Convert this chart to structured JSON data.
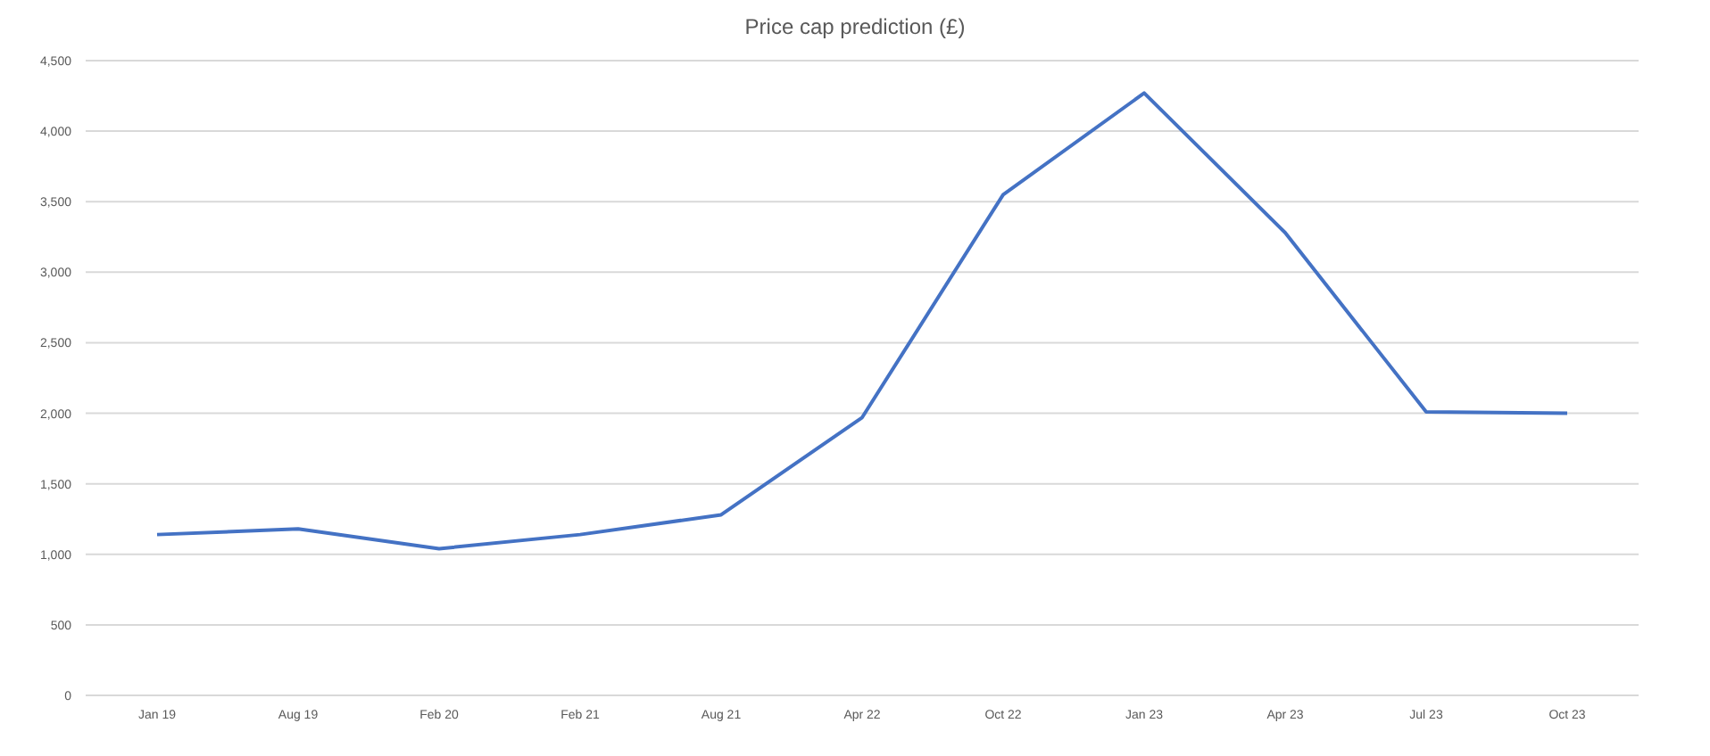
{
  "chart_data": {
    "type": "line",
    "title": "Price cap prediction (£)",
    "categories": [
      "Jan 19",
      "Aug 19",
      "Feb 20",
      "Feb 21",
      "Aug 21",
      "Apr 22",
      "Oct 22",
      "Jan 23",
      "Apr 23",
      "Jul 23",
      "Oct 23"
    ],
    "series": [
      {
        "color": "#4472c4",
        "values": [
          1140,
          1180,
          1040,
          1140,
          1280,
          1970,
          3550,
          4270,
          3280,
          2010,
          2000
        ]
      }
    ],
    "ylim": [
      0,
      4500
    ],
    "yticks": [
      {
        "value": 0,
        "label": "0"
      },
      {
        "value": 500,
        "label": "500"
      },
      {
        "value": 1000,
        "label": "1,000"
      },
      {
        "value": 1500,
        "label": "1,500"
      },
      {
        "value": 2000,
        "label": "2,000"
      },
      {
        "value": 2500,
        "label": "2,500"
      },
      {
        "value": 3000,
        "label": "3,000"
      },
      {
        "value": 3500,
        "label": "3,500"
      },
      {
        "value": 4000,
        "label": "4,000"
      },
      {
        "value": 4500,
        "label": "4,500"
      }
    ],
    "grid": "y",
    "marker": "none",
    "line_style": "solid"
  }
}
